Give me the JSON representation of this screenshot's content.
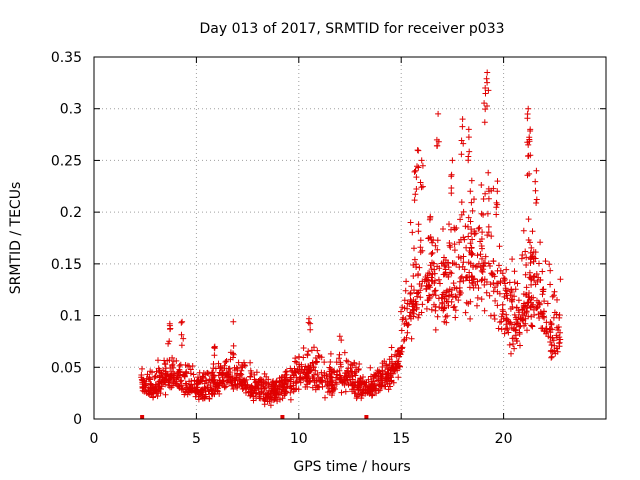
{
  "chart_data": {
    "type": "scatter",
    "title": "Day 013 of 2017, SRMTID for receiver p033",
    "xlabel": "GPS time / hours",
    "ylabel": "SRMTID / TECUs",
    "xlim": [
      0,
      25
    ],
    "ylim": [
      0,
      0.35
    ],
    "x_ticks": [
      "0",
      "5",
      "10",
      "15",
      "20"
    ],
    "y_ticks": [
      "0",
      "0.05",
      "0.1",
      "0.15",
      "0.2",
      "0.25",
      "0.3",
      "0.35"
    ],
    "grid": true,
    "marker": "plus",
    "color": "#e00000",
    "series": [
      {
        "name": "SRMTID",
        "x_range": [
          2.3,
          22.8
        ],
        "profile": [
          [
            2.3,
            0.032,
            0.012
          ],
          [
            3.0,
            0.03,
            0.012
          ],
          [
            3.6,
            0.045,
            0.018
          ],
          [
            4.2,
            0.038,
            0.016
          ],
          [
            5.0,
            0.03,
            0.012
          ],
          [
            5.6,
            0.028,
            0.012
          ],
          [
            6.4,
            0.04,
            0.016
          ],
          [
            7.0,
            0.04,
            0.016
          ],
          [
            7.8,
            0.03,
            0.014
          ],
          [
            8.5,
            0.025,
            0.012
          ],
          [
            9.2,
            0.03,
            0.014
          ],
          [
            10.0,
            0.04,
            0.016
          ],
          [
            10.6,
            0.045,
            0.018
          ],
          [
            11.2,
            0.038,
            0.016
          ],
          [
            11.8,
            0.035,
            0.016
          ],
          [
            12.3,
            0.045,
            0.018
          ],
          [
            13.0,
            0.03,
            0.012
          ],
          [
            13.6,
            0.03,
            0.012
          ],
          [
            14.2,
            0.04,
            0.014
          ],
          [
            14.8,
            0.05,
            0.016
          ],
          [
            15.3,
            0.1,
            0.04
          ],
          [
            15.8,
            0.13,
            0.045
          ],
          [
            16.5,
            0.14,
            0.045
          ],
          [
            17.0,
            0.12,
            0.04
          ],
          [
            17.5,
            0.13,
            0.045
          ],
          [
            18.2,
            0.14,
            0.055
          ],
          [
            18.8,
            0.15,
            0.06
          ],
          [
            19.3,
            0.16,
            0.06
          ],
          [
            19.8,
            0.12,
            0.045
          ],
          [
            20.3,
            0.09,
            0.035
          ],
          [
            20.8,
            0.1,
            0.04
          ],
          [
            21.3,
            0.13,
            0.055
          ],
          [
            21.8,
            0.11,
            0.045
          ],
          [
            22.3,
            0.08,
            0.03
          ],
          [
            22.8,
            0.08,
            0.03
          ]
        ],
        "peaks": [
          {
            "x": 19.2,
            "y": 0.335
          },
          {
            "x": 19.1,
            "y": 0.32
          },
          {
            "x": 18.0,
            "y": 0.29
          },
          {
            "x": 16.8,
            "y": 0.295
          },
          {
            "x": 21.2,
            "y": 0.3
          },
          {
            "x": 21.3,
            "y": 0.28
          },
          {
            "x": 21.2,
            "y": 0.265
          },
          {
            "x": 18.3,
            "y": 0.28
          },
          {
            "x": 17.5,
            "y": 0.25
          },
          {
            "x": 15.8,
            "y": 0.26
          },
          {
            "x": 15.7,
            "y": 0.24
          },
          {
            "x": 16.0,
            "y": 0.25
          },
          {
            "x": 21.6,
            "y": 0.24
          },
          {
            "x": 19.7,
            "y": 0.23
          },
          {
            "x": 3.7,
            "y": 0.092
          },
          {
            "x": 4.3,
            "y": 0.094
          },
          {
            "x": 6.8,
            "y": 0.094
          },
          {
            "x": 10.5,
            "y": 0.097
          },
          {
            "x": 12.0,
            "y": 0.08
          },
          {
            "x": 5.9,
            "y": 0.07
          }
        ],
        "baseline_markers": [
          2.35,
          9.2,
          13.3
        ]
      }
    ]
  }
}
